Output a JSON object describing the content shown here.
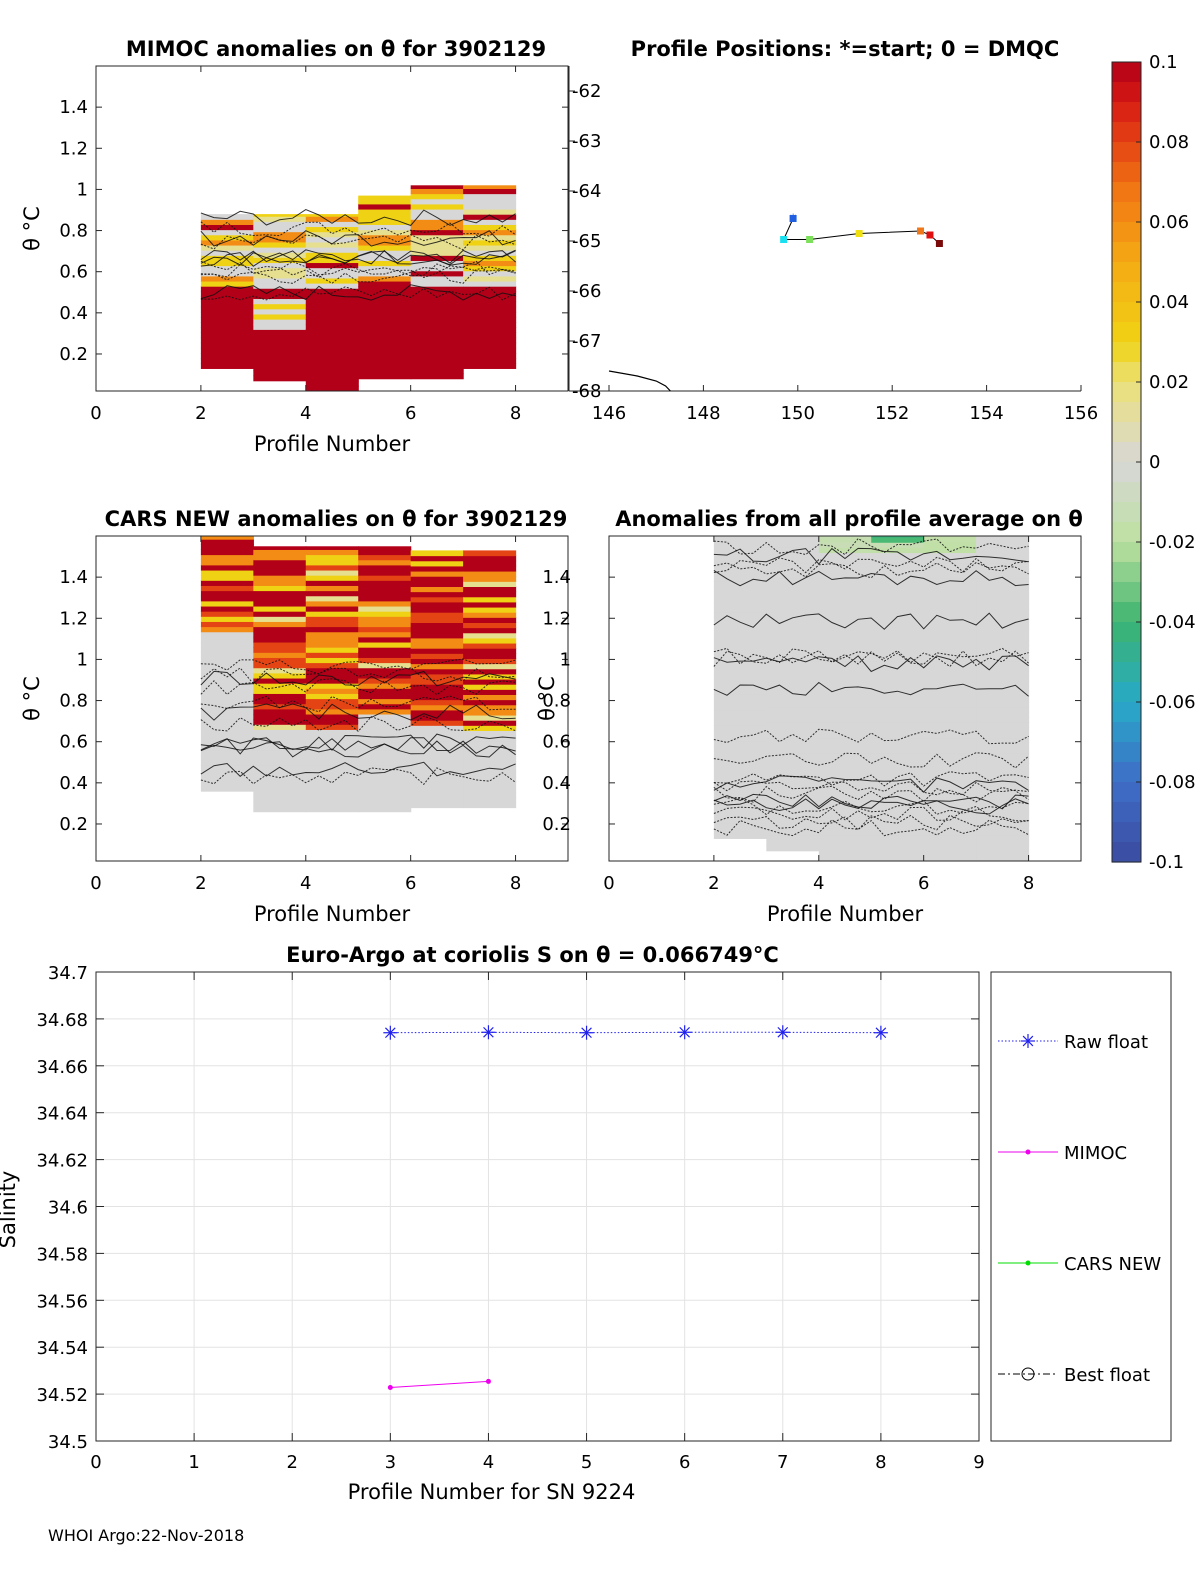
{
  "footer": "WHOI Argo:22-Nov-2018",
  "colorbar": {
    "ticks": [
      "0.1",
      "0.08",
      "0.06",
      "0.04",
      "0.02",
      "0",
      "-0.02",
      "-0.04",
      "-0.06",
      "-0.08",
      "-0.1"
    ],
    "range": [
      -0.1,
      0.1
    ]
  },
  "chart_data": [
    {
      "id": "mimoc",
      "type": "heatmap",
      "title": "MIMOC anomalies on θ  for 3902129",
      "xlabel": "Profile Number",
      "ylabel": "θ °C",
      "xlim": [
        0,
        9
      ],
      "ylim": [
        0.02,
        1.6
      ],
      "xticks": [
        "0",
        "2",
        "4",
        "6",
        "8"
      ],
      "yticks": [
        "0.2",
        "0.4",
        "0.6",
        "0.8",
        "1",
        "1.2",
        "1.4"
      ],
      "columns": [
        {
          "x0": 2,
          "x1": 3,
          "ymin": 0.13,
          "ymax": 0.88
        },
        {
          "x0": 3,
          "x1": 4,
          "ymin": 0.07,
          "ymax": 0.88
        },
        {
          "x0": 4,
          "x1": 5,
          "ymin": 0.02,
          "ymax": 0.88
        },
        {
          "x0": 5,
          "x1": 6,
          "ymin": 0.08,
          "ymax": 0.97
        },
        {
          "x0": 6,
          "x1": 7,
          "ymin": 0.08,
          "ymax": 1.02
        },
        {
          "x0": 7,
          "x1": 8,
          "ymin": 0.13,
          "ymax": 1.02
        }
      ],
      "anomaly_bands": [
        {
          "y0": 0.02,
          "y1": 0.52,
          "value": 0.1
        },
        {
          "y0": 0.52,
          "y1": 0.56,
          "value": 0.0
        },
        {
          "y0": 0.56,
          "y1": 0.65,
          "value": 0.1
        },
        {
          "y0": 0.65,
          "y1": 0.72,
          "value": 0.06
        },
        {
          "y0": 0.72,
          "y1": 0.8,
          "value": 0.03
        },
        {
          "y0": 0.8,
          "y1": 0.88,
          "value": 0.09
        },
        {
          "y0": 0.88,
          "y1": 0.97,
          "value": 0.03
        },
        {
          "y0": 0.97,
          "y1": 1.02,
          "value": 0.01
        }
      ]
    },
    {
      "id": "positions",
      "type": "scatter",
      "title": "Profile Positions: *=start; 0 = DMQC",
      "xlim": [
        146,
        156
      ],
      "ylim": [
        -68,
        -61.5
      ],
      "xticks": [
        "146",
        "148",
        "150",
        "152",
        "154",
        "156"
      ],
      "yticks": [
        "-62",
        "-63",
        "-64",
        "-65",
        "-66",
        "-67",
        "-68"
      ],
      "track": [
        {
          "lon": 149.9,
          "lat": -64.55,
          "color": "#1f5fe0"
        },
        {
          "lon": 149.7,
          "lat": -64.97,
          "color": "#19e0f0"
        },
        {
          "lon": 150.25,
          "lat": -64.97,
          "color": "#7de05a"
        },
        {
          "lon": 151.3,
          "lat": -64.85,
          "color": "#f0e010"
        },
        {
          "lon": 152.6,
          "lat": -64.8,
          "color": "#f07818"
        },
        {
          "lon": 152.8,
          "lat": -64.88,
          "color": "#e01010"
        },
        {
          "lon": 153.0,
          "lat": -65.05,
          "color": "#7a0a0a"
        }
      ],
      "coast": [
        [
          146.0,
          -67.6
        ],
        [
          146.6,
          -67.7
        ],
        [
          147.0,
          -67.8
        ],
        [
          147.2,
          -67.9
        ],
        [
          147.3,
          -68.0
        ]
      ]
    },
    {
      "id": "cars",
      "type": "heatmap",
      "title": "CARS NEW anomalies on θ for 3902129",
      "xlabel": "Profile Number",
      "ylabel": "θ °C",
      "xlim": [
        0,
        9
      ],
      "ylim": [
        0.02,
        1.6
      ],
      "xticks": [
        "0",
        "2",
        "4",
        "6",
        "8"
      ],
      "yticks": [
        "0.2",
        "0.4",
        "0.6",
        "0.8",
        "1",
        "1.2",
        "1.4"
      ],
      "columns": [
        {
          "x0": 2,
          "x1": 3,
          "ymin": 0.36,
          "ymax": 1.6,
          "hot_from": 1.12
        },
        {
          "x0": 3,
          "x1": 4,
          "ymin": 0.26,
          "ymax": 1.55,
          "hot_from": 0.66
        },
        {
          "x0": 4,
          "x1": 5,
          "ymin": 0.26,
          "ymax": 1.55,
          "hot_from": 0.66
        },
        {
          "x0": 5,
          "x1": 6,
          "ymin": 0.26,
          "ymax": 1.55,
          "hot_from": 0.72
        },
        {
          "x0": 6,
          "x1": 7,
          "ymin": 0.28,
          "ymax": 1.53,
          "hot_from": 0.68
        },
        {
          "x0": 7,
          "x1": 8,
          "ymin": 0.28,
          "ymax": 1.53,
          "hot_from": 0.64
        }
      ]
    },
    {
      "id": "allavg",
      "type": "heatmap",
      "title": "Anomalies from all profile average on θ",
      "xlabel": "Profile Number",
      "ylabel": "θ °C",
      "xlim": [
        0,
        9
      ],
      "ylim": [
        0.02,
        1.6
      ],
      "xticks": [
        "0",
        "2",
        "4",
        "6",
        "8"
      ],
      "yticks": [
        "0.2",
        "0.4",
        "0.6",
        "0.8",
        "1",
        "1.2",
        "1.4"
      ],
      "columns": [
        {
          "x0": 2,
          "x1": 3,
          "ymin": 0.13,
          "ymax": 1.6
        },
        {
          "x0": 3,
          "x1": 4,
          "ymin": 0.07,
          "ymax": 1.6
        },
        {
          "x0": 4,
          "x1": 5,
          "ymin": 0.02,
          "ymax": 1.6
        },
        {
          "x0": 5,
          "x1": 6,
          "ymin": 0.02,
          "ymax": 1.6
        },
        {
          "x0": 6,
          "x1": 7,
          "ymin": 0.02,
          "ymax": 1.6
        },
        {
          "x0": 7,
          "x1": 8,
          "ymin": 0.02,
          "ymax": 1.6
        }
      ],
      "patches": [
        {
          "x0": 4.0,
          "x1": 7.0,
          "y0": 1.5,
          "y1": 1.6,
          "value": -0.015
        },
        {
          "x0": 5.0,
          "x1": 6.0,
          "y0": 1.55,
          "y1": 1.6,
          "value": -0.04
        }
      ]
    },
    {
      "id": "salinity",
      "type": "line",
      "title": "Euro-Argo at coriolis S on θ = 0.066749°C",
      "xlabel": "Profile Number for SN 9224",
      "ylabel": "Salinity",
      "xlim": [
        0,
        9
      ],
      "ylim": [
        34.5,
        34.7
      ],
      "xticks": [
        "0",
        "1",
        "2",
        "3",
        "4",
        "5",
        "6",
        "7",
        "8",
        "9"
      ],
      "yticks": [
        "34.5",
        "34.52",
        "34.54",
        "34.56",
        "34.58",
        "34.6",
        "34.62",
        "34.64",
        "34.66",
        "34.68",
        "34.7"
      ],
      "grid": true,
      "legend": "right",
      "series": [
        {
          "name": "Raw float",
          "color": "#2020ee",
          "marker": "asterisk",
          "style": "dotted",
          "x": [
            3,
            4,
            5,
            6,
            7,
            8
          ],
          "y": [
            34.6741,
            34.6743,
            34.6741,
            34.6743,
            34.6743,
            34.6741
          ]
        },
        {
          "name": "MIMOC",
          "color": "#ee00ee",
          "marker": "dot",
          "style": "solid",
          "x": [
            3,
            4
          ],
          "y": [
            34.5228,
            34.5254
          ]
        },
        {
          "name": "CARS NEW",
          "color": "#00dd00",
          "marker": "dot",
          "style": "solid",
          "x": [],
          "y": []
        },
        {
          "name": "Best float",
          "color": "#000000",
          "marker": "circle",
          "style": "dashdot",
          "x": [],
          "y": []
        }
      ]
    }
  ]
}
